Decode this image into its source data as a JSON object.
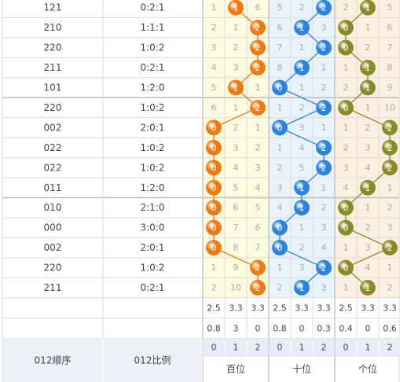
{
  "chart_data": {
    "type": "table",
    "rows": [
      {
        "order": "121",
        "ratio": "0:2:1",
        "bai": [
          1,
          1,
          6
        ],
        "shi": [
          5,
          2,
          2
        ],
        "ge": [
          2,
          1,
          5
        ],
        "w": [
          1,
          2,
          1
        ]
      },
      {
        "order": "210",
        "ratio": "1:1:1",
        "bai": [
          2,
          1,
          2
        ],
        "shi": [
          6,
          1,
          3
        ],
        "ge": [
          0,
          1,
          6
        ],
        "w": [
          2,
          1,
          0
        ]
      },
      {
        "order": "220",
        "ratio": "1:0:2",
        "bai": [
          3,
          2,
          2
        ],
        "shi": [
          7,
          1,
          2
        ],
        "ge": [
          0,
          2,
          7
        ],
        "w": [
          2,
          2,
          0
        ]
      },
      {
        "order": "211",
        "ratio": "0:2:1",
        "bai": [
          4,
          3,
          2
        ],
        "shi": [
          8,
          1,
          1
        ],
        "ge": [
          1,
          1,
          8
        ],
        "w": [
          2,
          1,
          1
        ]
      },
      {
        "order": "101",
        "ratio": "1:2:0",
        "bai": [
          5,
          1,
          1
        ],
        "shi": [
          0,
          1,
          2
        ],
        "ge": [
          2,
          1,
          9
        ],
        "w": [
          1,
          0,
          1
        ]
      },
      {
        "order": "220",
        "ratio": "1:0:2",
        "bai": [
          6,
          1,
          2
        ],
        "shi": [
          1,
          2,
          2
        ],
        "ge": [
          0,
          1,
          10
        ],
        "w": [
          2,
          2,
          0
        ]
      },
      {
        "order": "002",
        "ratio": "2:0:1",
        "bai": [
          0,
          2,
          1
        ],
        "shi": [
          0,
          3,
          1
        ],
        "ge": [
          1,
          2,
          2
        ],
        "w": [
          0,
          0,
          2
        ]
      },
      {
        "order": "022",
        "ratio": "1:0:2",
        "bai": [
          0,
          3,
          2
        ],
        "shi": [
          1,
          4,
          2
        ],
        "ge": [
          2,
          3,
          2
        ],
        "w": [
          0,
          2,
          2
        ]
      },
      {
        "order": "022",
        "ratio": "1:0:2",
        "bai": [
          0,
          4,
          3
        ],
        "shi": [
          2,
          5,
          2
        ],
        "ge": [
          3,
          4,
          2
        ],
        "w": [
          0,
          2,
          2
        ]
      },
      {
        "order": "011",
        "ratio": "1:2:0",
        "bai": [
          0,
          5,
          4
        ],
        "shi": [
          3,
          1,
          1
        ],
        "ge": [
          4,
          1,
          1
        ],
        "w": [
          0,
          1,
          1
        ]
      },
      {
        "order": "010",
        "ratio": "2:1:0",
        "bai": [
          0,
          6,
          5
        ],
        "shi": [
          4,
          1,
          2
        ],
        "ge": [
          0,
          1,
          2
        ],
        "w": [
          0,
          1,
          0
        ]
      },
      {
        "order": "000",
        "ratio": "3:0:0",
        "bai": [
          0,
          7,
          6
        ],
        "shi": [
          0,
          1,
          3
        ],
        "ge": [
          0,
          2,
          3
        ],
        "w": [
          0,
          0,
          0
        ]
      },
      {
        "order": "002",
        "ratio": "2:0:1",
        "bai": [
          0,
          8,
          7
        ],
        "shi": [
          0,
          2,
          4
        ],
        "ge": [
          1,
          3,
          2
        ],
        "w": [
          0,
          0,
          2
        ]
      },
      {
        "order": "220",
        "ratio": "1:0:2",
        "bai": [
          1,
          9,
          2
        ],
        "shi": [
          1,
          3,
          2
        ],
        "ge": [
          0,
          4,
          1
        ],
        "w": [
          2,
          2,
          0
        ]
      },
      {
        "order": "211",
        "ratio": "0:2:1",
        "bai": [
          2,
          10,
          2
        ],
        "shi": [
          2,
          1,
          3
        ],
        "ge": [
          1,
          1,
          2
        ],
        "w": [
          2,
          1,
          1
        ]
      }
    ],
    "stats_row1": [
      "2.5",
      "3.3",
      "3.3",
      "2.5",
      "3.3",
      "3.3",
      "2.5",
      "3.3",
      "3.3"
    ],
    "stats_row2": [
      "0.8",
      "3",
      "0",
      "0.8",
      "0",
      "0.3",
      "0.4",
      "0",
      "0.6"
    ],
    "digit_headers": [
      "0",
      "1",
      "2",
      "0",
      "1",
      "2",
      "0",
      "1",
      "2"
    ],
    "footer": {
      "col1": "012顺序",
      "col2": "012比例",
      "groups": [
        "百位",
        "十位",
        "个位"
      ]
    },
    "colors": {
      "bai_bg": "#fdfbe0",
      "shi_bg": "#e9f3fc",
      "ge_bg": "#fdf0e1",
      "bai_ball": "#f07a10",
      "shi_ball": "#2a83e0",
      "ge_ball": "#8a8a28",
      "line": "#dcdcdc",
      "sep": "#c9c9c9",
      "text": "#444444",
      "muted": "#aaaaaa",
      "digit_bg": "#e8eef8"
    }
  }
}
